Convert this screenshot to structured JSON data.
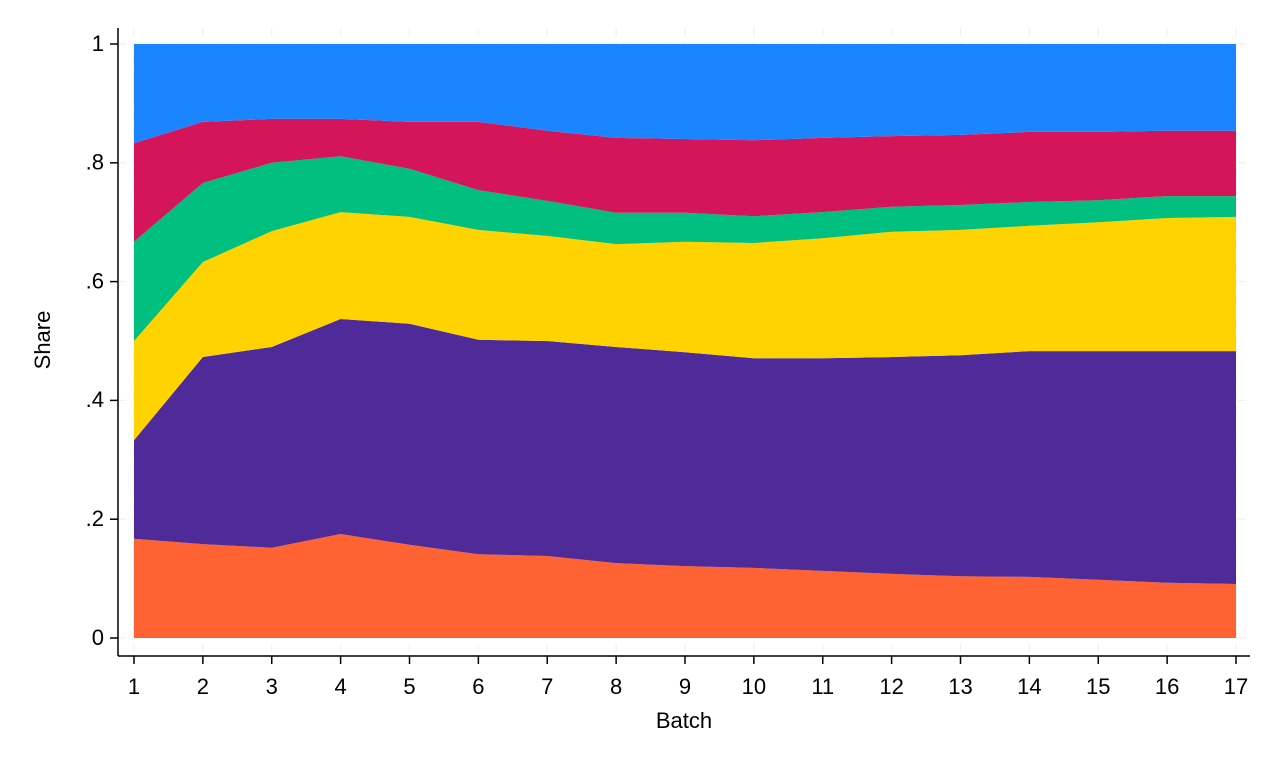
{
  "chart_data": {
    "type": "stacked-area",
    "xlabel": "Batch",
    "ylabel": "Share",
    "x": [
      1,
      2,
      3,
      4,
      5,
      6,
      7,
      8,
      9,
      10,
      11,
      12,
      13,
      14,
      15,
      16,
      17
    ],
    "series": [
      {
        "color": "#ff6333",
        "values": [
          0.167,
          0.158,
          0.152,
          0.175,
          0.157,
          0.141,
          0.138,
          0.126,
          0.121,
          0.118,
          0.113,
          0.108,
          0.104,
          0.103,
          0.098,
          0.093,
          0.091
        ]
      },
      {
        "color": "#4f2b99",
        "values": [
          0.166,
          0.315,
          0.338,
          0.362,
          0.372,
          0.361,
          0.362,
          0.364,
          0.36,
          0.353,
          0.358,
          0.365,
          0.372,
          0.38,
          0.385,
          0.39,
          0.392
        ]
      },
      {
        "color": "#fed300",
        "values": [
          0.167,
          0.16,
          0.195,
          0.18,
          0.18,
          0.185,
          0.177,
          0.173,
          0.186,
          0.194,
          0.202,
          0.211,
          0.211,
          0.211,
          0.217,
          0.224,
          0.226
        ]
      },
      {
        "color": "#00bf7f",
        "values": [
          0.167,
          0.133,
          0.115,
          0.094,
          0.081,
          0.067,
          0.059,
          0.053,
          0.049,
          0.045,
          0.044,
          0.042,
          0.042,
          0.04,
          0.037,
          0.037,
          0.035
        ]
      },
      {
        "color": "#d5155a",
        "values": [
          0.166,
          0.103,
          0.074,
          0.063,
          0.079,
          0.115,
          0.118,
          0.126,
          0.124,
          0.128,
          0.125,
          0.119,
          0.118,
          0.118,
          0.115,
          0.11,
          0.11
        ]
      },
      {
        "color": "#1a85ff",
        "values": [
          0.167,
          0.131,
          0.126,
          0.126,
          0.131,
          0.131,
          0.146,
          0.158,
          0.16,
          0.162,
          0.158,
          0.155,
          0.153,
          0.148,
          0.148,
          0.146,
          0.146
        ]
      }
    ],
    "xlim": [
      1,
      17
    ],
    "xticks": [
      1,
      2,
      3,
      4,
      5,
      6,
      7,
      8,
      9,
      10,
      11,
      12,
      13,
      14,
      15,
      16,
      17
    ],
    "ylim": [
      0,
      1
    ],
    "yticks": [
      0,
      {
        "value": 0.2,
        "label": ".2"
      },
      {
        "value": 0.4,
        "label": ".4"
      },
      {
        "value": 0.6,
        "label": ".6"
      },
      {
        "value": 0.8,
        "label": ".8"
      },
      1
    ],
    "grid": true
  }
}
